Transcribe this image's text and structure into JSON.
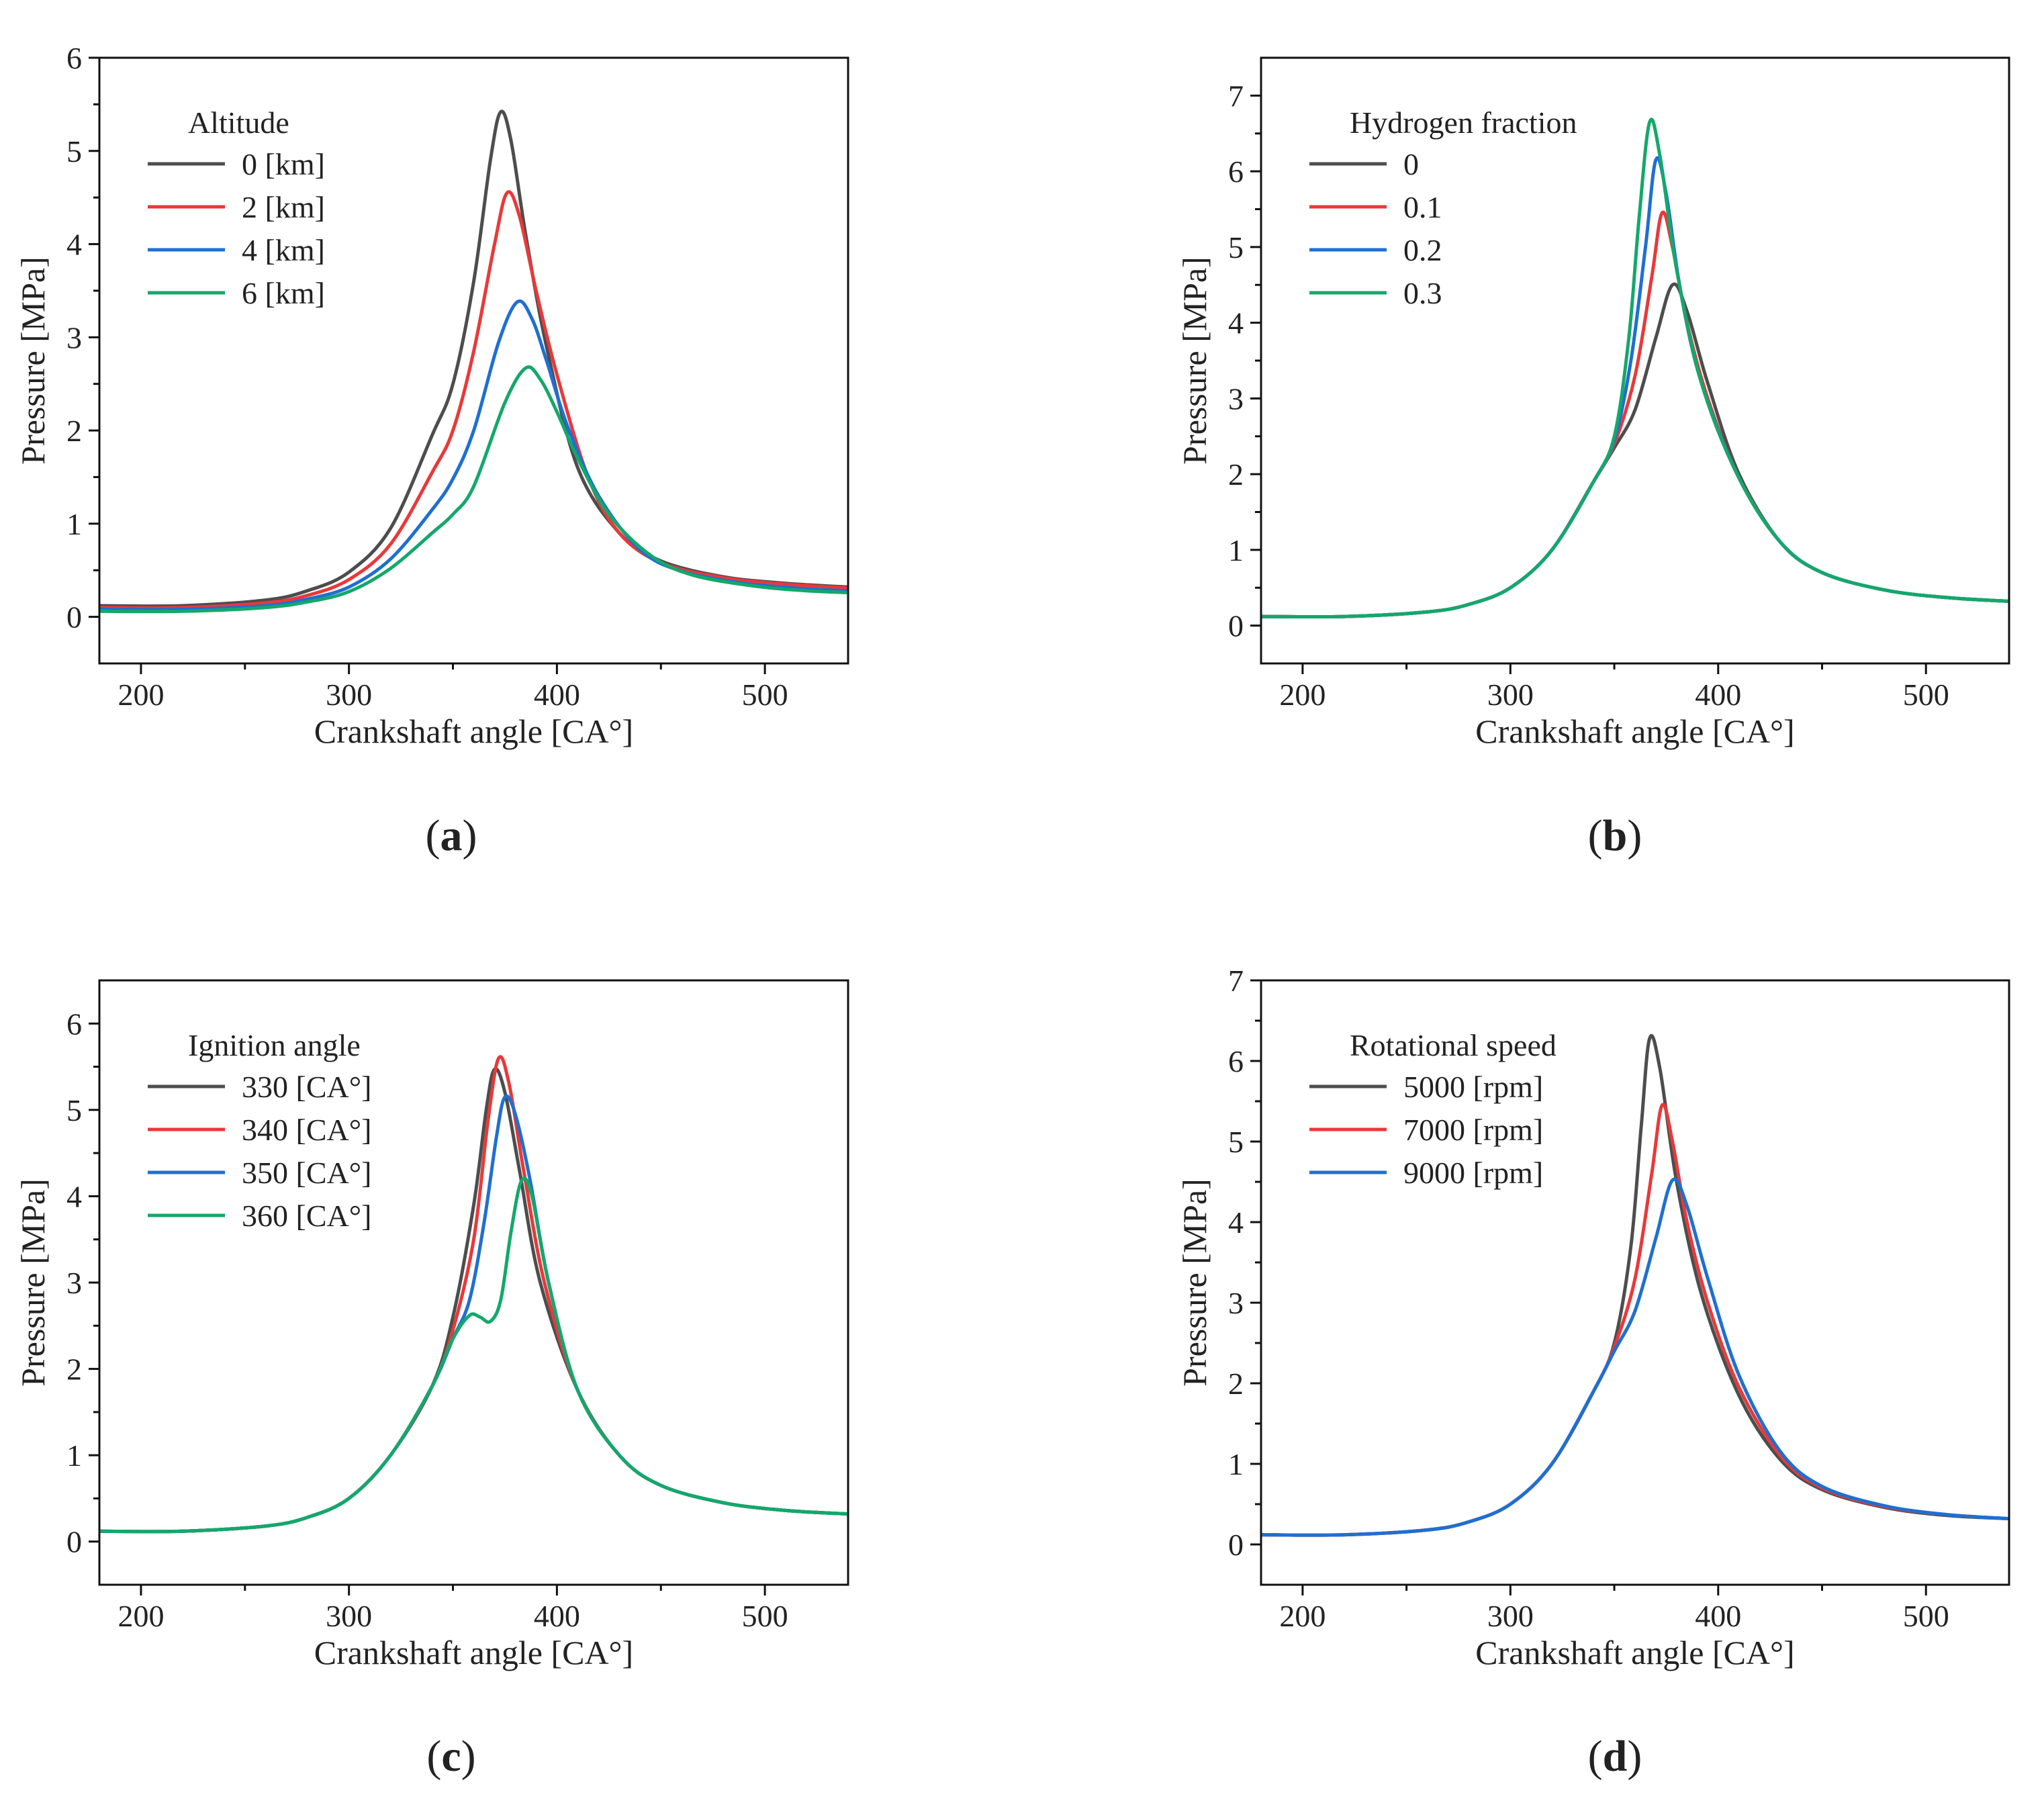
{
  "chart_data": [
    {
      "type": "line",
      "panel_label": "a",
      "xlabel": "Crankshaft angle [CA°]",
      "ylabel": "Pressure [MPa]",
      "xlim": [
        180,
        540
      ],
      "ylim": [
        -0.5,
        6
      ],
      "xticks": [
        200,
        300,
        400,
        500
      ],
      "yticks": [
        0,
        1,
        2,
        3,
        4,
        5,
        6
      ],
      "legend_title": "Altitude",
      "legend_position": "top-left",
      "series": [
        {
          "name": "0 [km]",
          "color": "#4d4d4d",
          "base": 0.12,
          "peak_x": 373,
          "peak_y": 5.42,
          "x": [
            180,
            220,
            260,
            280,
            300,
            320,
            340,
            350,
            360,
            368,
            373,
            378,
            385,
            395,
            410,
            430,
            450,
            480,
            510,
            540
          ],
          "y": [
            0.12,
            0.12,
            0.18,
            0.28,
            0.48,
            0.95,
            1.95,
            2.5,
            3.6,
            4.9,
            5.42,
            5.1,
            4.1,
            2.9,
            1.6,
            0.9,
            0.6,
            0.43,
            0.36,
            0.32
          ]
        },
        {
          "name": "2 [km]",
          "color": "#e8393a",
          "base": 0.1,
          "peak_x": 376,
          "peak_y": 4.55,
          "x": [
            180,
            220,
            260,
            280,
            300,
            320,
            340,
            350,
            360,
            370,
            376,
            382,
            390,
            400,
            415,
            430,
            450,
            480,
            510,
            540
          ],
          "y": [
            0.1,
            0.1,
            0.15,
            0.23,
            0.4,
            0.78,
            1.55,
            2.0,
            2.85,
            4.0,
            4.55,
            4.3,
            3.5,
            2.6,
            1.5,
            0.9,
            0.58,
            0.42,
            0.35,
            0.31
          ]
        },
        {
          "name": "4 [km]",
          "color": "#1f6fd1",
          "base": 0.08,
          "peak_x": 381,
          "peak_y": 3.38,
          "x": [
            180,
            220,
            260,
            280,
            300,
            320,
            340,
            350,
            360,
            372,
            381,
            388,
            395,
            405,
            420,
            440,
            460,
            490,
            520,
            540
          ],
          "y": [
            0.08,
            0.08,
            0.12,
            0.19,
            0.32,
            0.62,
            1.15,
            1.48,
            2.0,
            2.95,
            3.38,
            3.2,
            2.75,
            2.05,
            1.3,
            0.72,
            0.49,
            0.36,
            0.3,
            0.28
          ]
        },
        {
          "name": "6 [km]",
          "color": "#13a86b",
          "base": 0.06,
          "peak_x": 385,
          "peak_y": 2.67,
          "x": [
            180,
            220,
            260,
            280,
            300,
            320,
            340,
            350,
            360,
            375,
            385,
            392,
            400,
            410,
            425,
            445,
            465,
            495,
            520,
            540
          ],
          "y": [
            0.06,
            0.06,
            0.1,
            0.16,
            0.27,
            0.52,
            0.9,
            1.1,
            1.4,
            2.3,
            2.67,
            2.55,
            2.2,
            1.7,
            1.1,
            0.66,
            0.45,
            0.33,
            0.28,
            0.26
          ]
        }
      ]
    },
    {
      "type": "line",
      "panel_label": "b",
      "xlabel": "Crankshaft angle [CA°]",
      "ylabel": "Pressure [MPa]",
      "xlim": [
        180,
        540
      ],
      "ylim": [
        -0.5,
        7.5
      ],
      "xticks": [
        200,
        300,
        400,
        500
      ],
      "yticks": [
        0,
        1,
        2,
        3,
        4,
        5,
        6,
        7
      ],
      "legend_title": "Hydrogen fraction",
      "legend_position": "top-left",
      "series": [
        {
          "name": "0",
          "color": "#4d4d4d",
          "base": 0.12,
          "peak_x": 378,
          "peak_y": 4.5,
          "x": [
            180,
            220,
            260,
            280,
            300,
            320,
            340,
            350,
            360,
            370,
            378,
            385,
            395,
            410,
            430,
            450,
            480,
            510,
            540
          ],
          "y": [
            0.12,
            0.12,
            0.18,
            0.28,
            0.5,
            1.0,
            1.9,
            2.35,
            2.85,
            3.8,
            4.5,
            4.15,
            3.2,
            2.0,
            1.1,
            0.7,
            0.47,
            0.37,
            0.32
          ]
        },
        {
          "name": "0.1",
          "color": "#e8393a",
          "base": 0.12,
          "peak_x": 373,
          "peak_y": 5.45,
          "x": [
            180,
            220,
            260,
            280,
            300,
            320,
            340,
            350,
            360,
            368,
            373,
            378,
            385,
            395,
            410,
            430,
            450,
            480,
            510,
            540
          ],
          "y": [
            0.12,
            0.12,
            0.18,
            0.28,
            0.5,
            1.0,
            1.9,
            2.4,
            3.3,
            4.6,
            5.45,
            5.0,
            4.0,
            3.0,
            1.95,
            1.1,
            0.7,
            0.47,
            0.37,
            0.32
          ]
        },
        {
          "name": "0.2",
          "color": "#1f6fd1",
          "base": 0.12,
          "peak_x": 370,
          "peak_y": 6.15,
          "x": [
            180,
            220,
            260,
            280,
            300,
            320,
            340,
            350,
            358,
            365,
            370,
            375,
            382,
            392,
            410,
            430,
            450,
            480,
            510,
            540
          ],
          "y": [
            0.12,
            0.12,
            0.18,
            0.28,
            0.5,
            1.0,
            1.9,
            2.45,
            3.5,
            5.0,
            6.15,
            5.7,
            4.4,
            3.2,
            1.95,
            1.1,
            0.7,
            0.47,
            0.37,
            0.32
          ]
        },
        {
          "name": "0.3",
          "color": "#13a86b",
          "base": 0.12,
          "peak_x": 367,
          "peak_y": 6.65,
          "x": [
            180,
            220,
            260,
            280,
            300,
            320,
            340,
            350,
            357,
            362,
            367,
            372,
            380,
            392,
            410,
            430,
            450,
            480,
            510,
            540
          ],
          "y": [
            0.12,
            0.12,
            0.18,
            0.28,
            0.5,
            1.0,
            1.9,
            2.5,
            3.8,
            5.4,
            6.65,
            6.2,
            4.7,
            3.2,
            1.95,
            1.1,
            0.7,
            0.47,
            0.37,
            0.32
          ]
        }
      ]
    },
    {
      "type": "line",
      "panel_label": "c",
      "xlabel": "Crankshaft angle [CA°]",
      "ylabel": "Pressure [MPa]",
      "xlim": [
        180,
        540
      ],
      "ylim": [
        -0.5,
        6.5
      ],
      "xticks": [
        200,
        300,
        400,
        500
      ],
      "yticks": [
        0,
        1,
        2,
        3,
        4,
        5,
        6
      ],
      "legend_title": "Ignition angle",
      "legend_position": "top-left",
      "series": [
        {
          "name": "330 [CA°]",
          "color": "#4d4d4d",
          "base": 0.12,
          "peak_x": 370,
          "peak_y": 5.47,
          "x": [
            180,
            220,
            260,
            280,
            300,
            320,
            340,
            350,
            360,
            366,
            370,
            375,
            382,
            392,
            410,
            430,
            450,
            480,
            510,
            540
          ],
          "y": [
            0.12,
            0.12,
            0.18,
            0.28,
            0.5,
            1.0,
            1.8,
            2.6,
            3.9,
            5.0,
            5.47,
            5.2,
            4.3,
            3.0,
            1.75,
            1.0,
            0.65,
            0.45,
            0.36,
            0.32
          ]
        },
        {
          "name": "340 [CA°]",
          "color": "#e8393a",
          "base": 0.12,
          "peak_x": 372,
          "peak_y": 5.6,
          "x": [
            180,
            220,
            260,
            280,
            300,
            320,
            340,
            350,
            360,
            367,
            372,
            377,
            384,
            394,
            410,
            430,
            450,
            480,
            510,
            540
          ],
          "y": [
            0.12,
            0.12,
            0.18,
            0.28,
            0.5,
            1.0,
            1.8,
            2.45,
            3.5,
            4.9,
            5.6,
            5.3,
            4.3,
            3.0,
            1.75,
            1.0,
            0.65,
            0.45,
            0.36,
            0.32
          ]
        },
        {
          "name": "350 [CA°]",
          "color": "#1f6fd1",
          "base": 0.12,
          "peak_x": 375,
          "peak_y": 5.15,
          "x": [
            180,
            220,
            260,
            280,
            300,
            320,
            340,
            350,
            358,
            365,
            371,
            375,
            380,
            387,
            396,
            410,
            430,
            450,
            480,
            510,
            540
          ],
          "y": [
            0.12,
            0.12,
            0.18,
            0.28,
            0.5,
            1.0,
            1.8,
            2.35,
            2.8,
            3.7,
            4.7,
            5.15,
            4.95,
            4.2,
            3.0,
            1.75,
            1.0,
            0.65,
            0.45,
            0.36,
            0.32
          ]
        },
        {
          "name": "360 [CA°]",
          "color": "#13a86b",
          "base": 0.12,
          "peak_x": 383,
          "peak_y": 4.18,
          "x": [
            180,
            220,
            260,
            280,
            300,
            320,
            340,
            350,
            358,
            363,
            368,
            373,
            378,
            383,
            388,
            396,
            410,
            430,
            450,
            480,
            510,
            540
          ],
          "y": [
            0.12,
            0.12,
            0.18,
            0.28,
            0.5,
            1.0,
            1.8,
            2.35,
            2.62,
            2.6,
            2.55,
            2.8,
            3.6,
            4.18,
            4.0,
            3.0,
            1.75,
            1.0,
            0.65,
            0.45,
            0.36,
            0.32
          ]
        }
      ]
    },
    {
      "type": "line",
      "panel_label": "d",
      "xlabel": "Crankshaft angle [CA°]",
      "ylabel": "Pressure [MPa]",
      "xlim": [
        180,
        540
      ],
      "ylim": [
        -0.5,
        7
      ],
      "xticks": [
        200,
        300,
        400,
        500
      ],
      "yticks": [
        0,
        1,
        2,
        3,
        4,
        5,
        6,
        7
      ],
      "legend_title": "Rotational speed",
      "legend_position": "top-left",
      "series": [
        {
          "name": "5000 [rpm]",
          "color": "#4d4d4d",
          "base": 0.12,
          "peak_x": 367,
          "peak_y": 6.28,
          "x": [
            180,
            220,
            260,
            280,
            300,
            320,
            340,
            350,
            358,
            363,
            367,
            372,
            380,
            392,
            410,
            430,
            450,
            480,
            510,
            540
          ],
          "y": [
            0.12,
            0.12,
            0.18,
            0.28,
            0.5,
            1.0,
            1.9,
            2.5,
            3.7,
            5.2,
            6.28,
            5.9,
            4.5,
            3.1,
            1.85,
            1.05,
            0.68,
            0.46,
            0.36,
            0.32
          ]
        },
        {
          "name": "7000 [rpm]",
          "color": "#e8393a",
          "base": 0.12,
          "peak_x": 373,
          "peak_y": 5.45,
          "x": [
            180,
            220,
            260,
            280,
            300,
            320,
            340,
            350,
            360,
            368,
            373,
            378,
            385,
            395,
            410,
            430,
            450,
            480,
            510,
            540
          ],
          "y": [
            0.12,
            0.12,
            0.18,
            0.28,
            0.5,
            1.0,
            1.9,
            2.45,
            3.3,
            4.6,
            5.45,
            5.0,
            4.0,
            3.0,
            1.95,
            1.1,
            0.7,
            0.47,
            0.37,
            0.32
          ]
        },
        {
          "name": "9000 [rpm]",
          "color": "#1f6fd1",
          "base": 0.12,
          "peak_x": 378,
          "peak_y": 4.52,
          "x": [
            180,
            220,
            260,
            280,
            300,
            320,
            340,
            350,
            360,
            370,
            378,
            385,
            395,
            410,
            430,
            450,
            480,
            510,
            540
          ],
          "y": [
            0.12,
            0.12,
            0.18,
            0.28,
            0.5,
            1.0,
            1.9,
            2.4,
            2.9,
            3.8,
            4.52,
            4.2,
            3.3,
            2.1,
            1.15,
            0.72,
            0.48,
            0.37,
            0.32
          ]
        }
      ]
    }
  ]
}
